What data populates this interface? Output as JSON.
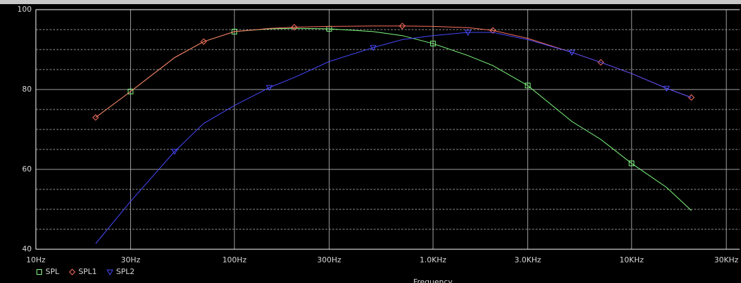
{
  "chart_data": {
    "type": "line",
    "x_label": "Frequency",
    "log_x": true,
    "grid": true,
    "x": [
      20,
      30,
      50,
      70,
      100,
      150,
      200,
      300,
      500,
      700,
      1000,
      1500,
      2000,
      3000,
      5000,
      7000,
      10000,
      15000,
      20000
    ],
    "series": [
      {
        "name": "SPL",
        "color": "#80ff80",
        "marker": "square",
        "values": [
          73,
          79.5,
          88,
          92,
          94.5,
          95.2,
          95.3,
          95.2,
          94.5,
          93.5,
          91.5,
          88.5,
          86,
          81,
          72,
          67.5,
          61.5,
          55.5,
          49.7
        ]
      },
      {
        "name": "SPL1",
        "color": "#ff7060",
        "marker": "diamond",
        "values": [
          73,
          79.5,
          88,
          92,
          94.5,
          95.3,
          95.6,
          95.8,
          95.9,
          95.9,
          95.8,
          95.5,
          94.8,
          92.8,
          89.3,
          86.8,
          84,
          80.3,
          78
        ]
      },
      {
        "name": "SPL2",
        "color": "#4848ff",
        "marker": "triangle",
        "values": [
          41.4,
          52,
          64.5,
          71.5,
          76,
          80.5,
          83,
          87,
          90.5,
          92.5,
          93.5,
          94.3,
          94.3,
          92.5,
          89.3,
          86.8,
          84,
          80.3,
          78
        ]
      }
    ],
    "xlim": [
      10,
      35000
    ],
    "xticks": [
      {
        "value": 10,
        "label": "10Hz"
      },
      {
        "value": 30,
        "label": "30Hz"
      },
      {
        "value": 100,
        "label": "100Hz"
      },
      {
        "value": 300,
        "label": "300Hz"
      },
      {
        "value": 1000,
        "label": "1.0KHz"
      },
      {
        "value": 3000,
        "label": "3.0KHz"
      },
      {
        "value": 10000,
        "label": "10KHz"
      },
      {
        "value": 30000,
        "label": "30KHz"
      }
    ],
    "ylim": [
      40,
      100
    ],
    "yticks": [
      40,
      60,
      80,
      100
    ],
    "minor_y_step": 5
  }
}
